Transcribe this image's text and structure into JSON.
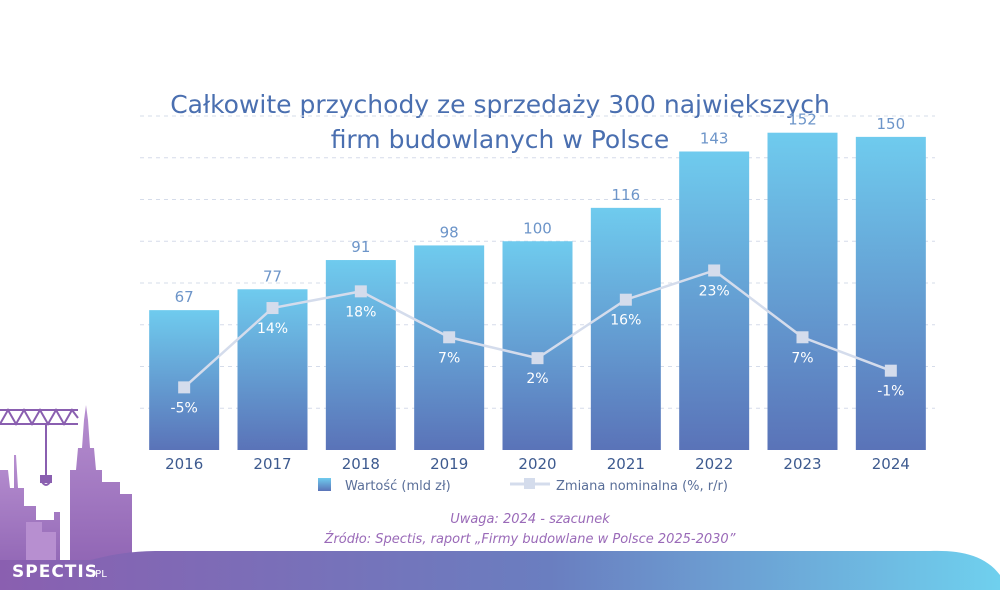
{
  "chart_data": {
    "type": "bar",
    "title_lines": [
      "Całkowite przychody ze sprzedaży 300 największych",
      "firm budowlanych w Polsce"
    ],
    "categories": [
      "2016",
      "2017",
      "2018",
      "2019",
      "2020",
      "2021",
      "2022",
      "2023",
      "2024"
    ],
    "series": [
      {
        "name": "Wartość (mld zł)",
        "type": "bar",
        "values": [
          67,
          77,
          91,
          98,
          100,
          116,
          143,
          152,
          150
        ]
      },
      {
        "name": "Zmiana nominalna (%, r/r)",
        "type": "line",
        "values": [
          -5,
          14,
          18,
          7,
          2,
          16,
          23,
          7,
          -1
        ]
      }
    ],
    "value_labels": [
      "67",
      "77",
      "91",
      "98",
      "100",
      "116",
      "143",
      "152",
      "150"
    ],
    "pct_labels": [
      "-5%",
      "14%",
      "18%",
      "7%",
      "2%",
      "16%",
      "23%",
      "7%",
      "-1%"
    ],
    "ylim": [
      0,
      160
    ],
    "line_ylim": [
      -20,
      60
    ],
    "grid": true,
    "legend_position": "bottom"
  },
  "legend": {
    "bar_label": "Wartość (mld zł)",
    "line_label": "Zmiana nominalna (%, r/r)"
  },
  "notes": {
    "note": "Uwaga: 2024 - szacunek",
    "source": "Źródło: Spectis, raport „Firmy budowlane w Polsce 2025-2030”"
  },
  "brand": {
    "name": "SPECTIS",
    "suffix": ".PL"
  },
  "colors": {
    "bar_top": "#6fcbee",
    "bar_bottom": "#5a73b8",
    "line": "#d4dcec",
    "title": "#4a6fb0",
    "purple": "#8a5fb0",
    "wave_right": "#6fd0ee"
  }
}
